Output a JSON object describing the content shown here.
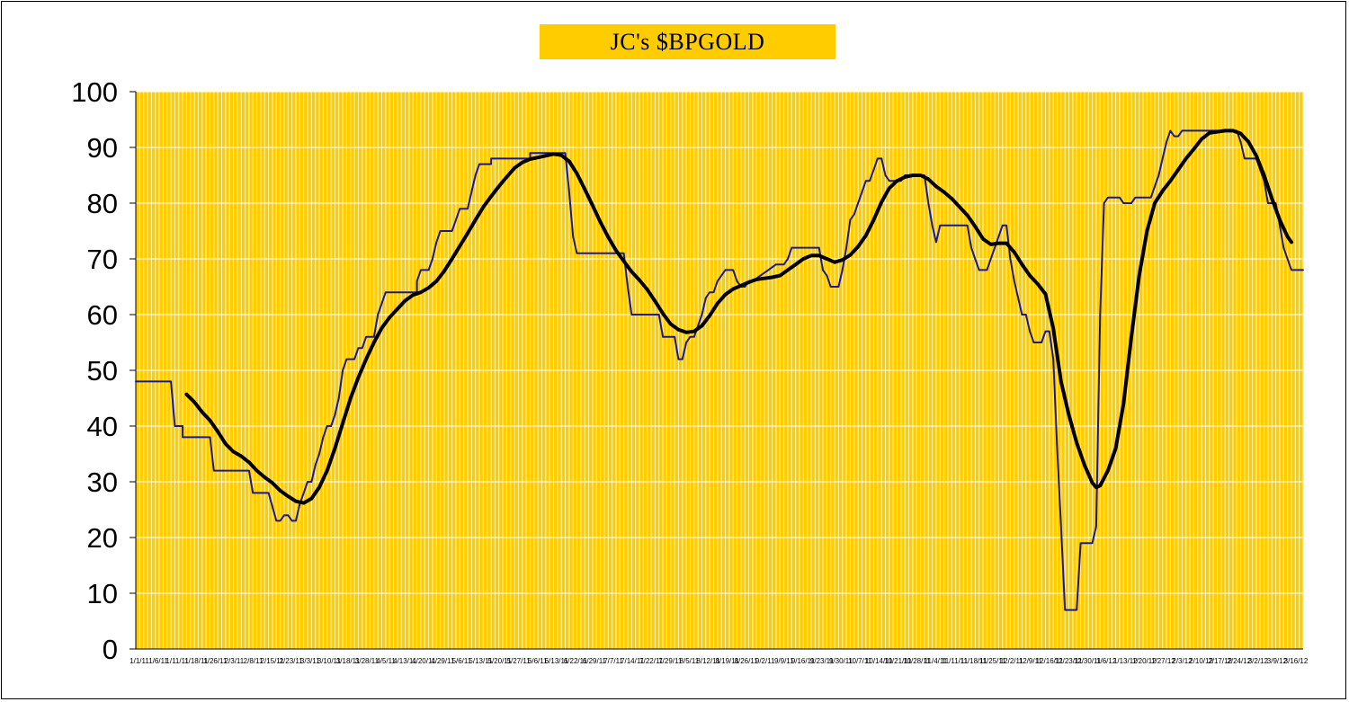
{
  "chart_data": {
    "type": "line",
    "title": "JC's $BPGOLD",
    "xlabel": "",
    "ylabel": "",
    "ylim": [
      0,
      100
    ],
    "yticks": [
      0,
      10,
      20,
      30,
      40,
      50,
      60,
      70,
      80,
      90,
      100
    ],
    "xtick_labels": [
      "1/1/11",
      "1/6/11",
      "1/11/11",
      "1/18/11",
      "1/26/11",
      "2/3/11",
      "2/8/11",
      "2/15/11",
      "2/23/11",
      "3/3/11",
      "3/10/11",
      "3/18/11",
      "3/28/11",
      "4/5/11",
      "4/13/11",
      "4/20/11",
      "4/29/11",
      "5/6/11",
      "5/13/11",
      "5/20/11",
      "5/27/11",
      "6/6/11",
      "6/13/11",
      "6/22/11",
      "6/29/11",
      "7/7/11",
      "7/14/11",
      "7/22/11",
      "7/29/11",
      "8/5/11",
      "8/12/11",
      "8/19/11",
      "8/26/11",
      "9/2/11",
      "9/9/11",
      "9/16/11",
      "9/23/11",
      "9/30/11",
      "10/7/11",
      "10/14/11",
      "10/21/11",
      "10/28/11",
      "11/4/11",
      "11/11/11",
      "11/18/11",
      "11/25/11",
      "12/2/11",
      "12/9/11",
      "12/16/11",
      "12/23/11",
      "12/30/11",
      "1/6/12",
      "1/13/12",
      "1/20/12",
      "1/27/12",
      "2/3/12",
      "2/10/12",
      "2/17/12",
      "2/24/12",
      "3/2/12",
      "3/9/12",
      "3/16/12"
    ],
    "grid": "vertical",
    "background": "#ffcc00",
    "x_count": 300,
    "series": [
      {
        "color": "#1a1a8c",
        "width": 2,
        "points": [
          [
            0,
            48
          ],
          [
            9,
            48
          ],
          [
            10,
            40
          ],
          [
            12,
            40
          ],
          [
            12,
            38
          ],
          [
            19,
            38
          ],
          [
            20,
            32
          ],
          [
            29,
            32
          ],
          [
            30,
            28
          ],
          [
            34,
            28
          ],
          [
            36,
            23
          ],
          [
            37,
            23
          ],
          [
            38,
            24
          ],
          [
            39,
            24
          ],
          [
            40,
            23
          ],
          [
            41,
            23
          ],
          [
            42,
            26
          ],
          [
            43,
            28
          ],
          [
            44,
            30
          ],
          [
            45,
            30
          ],
          [
            46,
            33
          ],
          [
            47,
            35
          ],
          [
            48,
            38
          ],
          [
            49,
            40
          ],
          [
            50,
            40
          ],
          [
            51,
            42
          ],
          [
            52,
            45
          ],
          [
            53,
            50
          ],
          [
            54,
            52
          ],
          [
            56,
            52
          ],
          [
            57,
            54
          ],
          [
            58,
            54
          ],
          [
            59,
            56
          ],
          [
            61,
            56
          ],
          [
            62,
            60
          ],
          [
            63,
            62
          ],
          [
            64,
            64
          ],
          [
            72,
            64
          ],
          [
            72,
            66
          ],
          [
            73,
            68
          ],
          [
            75,
            68
          ],
          [
            76,
            70
          ],
          [
            77,
            73
          ],
          [
            78,
            75
          ],
          [
            81,
            75
          ],
          [
            82,
            77
          ],
          [
            83,
            79
          ],
          [
            85,
            79
          ],
          [
            86,
            82
          ],
          [
            87,
            85
          ],
          [
            88,
            87
          ],
          [
            91,
            87
          ],
          [
            91,
            88
          ],
          [
            101,
            88
          ],
          [
            101,
            89
          ],
          [
            110,
            89
          ],
          [
            111,
            82
          ],
          [
            112,
            74
          ],
          [
            113,
            71
          ],
          [
            125,
            71
          ],
          [
            126,
            65
          ],
          [
            127,
            60
          ],
          [
            134,
            60
          ],
          [
            135,
            56
          ],
          [
            138,
            56
          ],
          [
            139,
            52
          ],
          [
            140,
            52
          ],
          [
            141,
            55
          ],
          [
            142,
            56
          ],
          [
            143,
            56
          ],
          [
            144,
            58
          ],
          [
            145,
            60
          ],
          [
            146,
            63
          ],
          [
            147,
            64
          ],
          [
            148,
            64
          ],
          [
            149,
            66
          ],
          [
            150,
            67
          ],
          [
            151,
            68
          ],
          [
            153,
            68
          ],
          [
            154,
            66
          ],
          [
            155,
            65
          ],
          [
            156,
            65
          ],
          [
            157,
            66
          ],
          [
            158,
            66
          ],
          [
            160,
            67
          ],
          [
            162,
            68
          ],
          [
            164,
            69
          ],
          [
            166,
            69
          ],
          [
            167,
            70
          ],
          [
            168,
            72
          ],
          [
            175,
            72
          ],
          [
            176,
            68
          ],
          [
            177,
            67
          ],
          [
            178,
            65
          ],
          [
            180,
            65
          ],
          [
            181,
            68
          ],
          [
            182,
            72
          ],
          [
            183,
            77
          ],
          [
            184,
            78
          ],
          [
            185,
            80
          ],
          [
            186,
            82
          ],
          [
            187,
            84
          ],
          [
            188,
            84
          ],
          [
            189,
            86
          ],
          [
            190,
            88
          ],
          [
            191,
            88
          ],
          [
            192,
            85
          ],
          [
            193,
            84
          ],
          [
            196,
            84
          ],
          [
            197,
            85
          ],
          [
            202,
            85
          ],
          [
            203,
            80
          ],
          [
            204,
            76
          ],
          [
            205,
            73
          ],
          [
            206,
            76
          ],
          [
            208,
            76
          ],
          [
            213,
            76
          ],
          [
            214,
            72
          ],
          [
            215,
            70
          ],
          [
            216,
            68
          ],
          [
            218,
            68
          ],
          [
            219,
            70
          ],
          [
            220,
            72
          ],
          [
            221,
            74
          ],
          [
            222,
            76
          ],
          [
            223,
            76
          ],
          [
            224,
            70
          ],
          [
            225,
            66
          ],
          [
            226,
            63
          ],
          [
            227,
            60
          ],
          [
            228,
            60
          ],
          [
            229,
            57
          ],
          [
            230,
            55
          ],
          [
            232,
            55
          ],
          [
            233,
            57
          ],
          [
            234,
            57
          ],
          [
            235,
            52
          ],
          [
            236,
            36
          ],
          [
            237,
            22
          ],
          [
            238,
            7
          ],
          [
            241,
            7
          ],
          [
            242,
            19
          ],
          [
            245,
            19
          ],
          [
            246,
            22
          ],
          [
            247,
            60
          ],
          [
            248,
            80
          ],
          [
            249,
            81
          ],
          [
            252,
            81
          ],
          [
            253,
            80
          ],
          [
            255,
            80
          ],
          [
            256,
            81
          ],
          [
            260,
            81
          ],
          [
            261,
            83
          ],
          [
            262,
            85
          ],
          [
            263,
            88
          ],
          [
            264,
            91
          ],
          [
            265,
            93
          ],
          [
            266,
            92
          ],
          [
            267,
            92
          ],
          [
            268,
            93
          ],
          [
            282,
            93
          ],
          [
            283,
            91
          ],
          [
            284,
            88
          ],
          [
            287,
            88
          ],
          [
            288,
            86
          ],
          [
            289,
            84
          ],
          [
            290,
            80
          ],
          [
            291,
            80
          ],
          [
            292,
            80
          ],
          [
            293,
            76
          ],
          [
            294,
            72
          ],
          [
            295,
            70
          ],
          [
            296,
            68
          ],
          [
            299,
            68
          ]
        ]
      },
      {
        "color": "#000000",
        "width": 4,
        "points": [
          [
            13,
            45.7
          ],
          [
            15,
            44.3
          ],
          [
            17,
            42.5
          ],
          [
            19,
            41
          ],
          [
            21,
            39
          ],
          [
            23,
            36.8
          ],
          [
            25,
            35.4
          ],
          [
            27,
            34.6
          ],
          [
            29,
            33.5
          ],
          [
            31,
            32
          ],
          [
            33,
            30.8
          ],
          [
            35,
            29.8
          ],
          [
            37,
            28.4
          ],
          [
            39,
            27.4
          ],
          [
            41,
            26.5
          ],
          [
            43,
            26.2
          ],
          [
            45,
            27
          ],
          [
            47,
            29
          ],
          [
            49,
            32
          ],
          [
            51,
            36
          ],
          [
            53,
            40.5
          ],
          [
            55,
            45
          ],
          [
            57,
            48.7
          ],
          [
            59,
            52
          ],
          [
            61,
            55
          ],
          [
            63,
            57.6
          ],
          [
            65,
            59.5
          ],
          [
            67,
            61
          ],
          [
            69,
            62.5
          ],
          [
            71,
            63.5
          ],
          [
            73,
            64
          ],
          [
            75,
            64.8
          ],
          [
            77,
            66
          ],
          [
            79,
            67.8
          ],
          [
            81,
            70
          ],
          [
            83,
            72.3
          ],
          [
            85,
            74.6
          ],
          [
            87,
            77
          ],
          [
            89,
            79.3
          ],
          [
            91,
            81.2
          ],
          [
            93,
            83
          ],
          [
            95,
            84.7
          ],
          [
            97,
            86.3
          ],
          [
            99,
            87.3
          ],
          [
            101,
            87.9
          ],
          [
            103,
            88.2
          ],
          [
            105,
            88.5
          ],
          [
            107,
            88.8
          ],
          [
            109,
            88.6
          ],
          [
            111,
            87.5
          ],
          [
            113,
            85.3
          ],
          [
            115,
            82.5
          ],
          [
            117,
            79.6
          ],
          [
            119,
            76.6
          ],
          [
            121,
            73.9
          ],
          [
            123,
            71.5
          ],
          [
            125,
            69.6
          ],
          [
            127,
            67.7
          ],
          [
            129,
            66.2
          ],
          [
            131,
            64.5
          ],
          [
            133,
            62.4
          ],
          [
            135,
            60.2
          ],
          [
            137,
            58.3
          ],
          [
            139,
            57.3
          ],
          [
            141,
            56.8
          ],
          [
            143,
            57
          ],
          [
            145,
            58
          ],
          [
            147,
            59.8
          ],
          [
            149,
            62
          ],
          [
            151,
            63.6
          ],
          [
            153,
            64.6
          ],
          [
            155,
            65.2
          ],
          [
            157,
            65.8
          ],
          [
            159,
            66.3
          ],
          [
            161,
            66.5
          ],
          [
            163,
            66.7
          ],
          [
            165,
            67
          ],
          [
            167,
            68
          ],
          [
            169,
            69
          ],
          [
            171,
            70
          ],
          [
            173,
            70.6
          ],
          [
            175,
            70.6
          ],
          [
            177,
            70
          ],
          [
            179,
            69.4
          ],
          [
            181,
            69.8
          ],
          [
            183,
            70.7
          ],
          [
            185,
            72.2
          ],
          [
            187,
            74.2
          ],
          [
            189,
            77
          ],
          [
            191,
            80.2
          ],
          [
            193,
            82.7
          ],
          [
            195,
            84
          ],
          [
            197,
            84.7
          ],
          [
            199,
            85
          ],
          [
            201,
            85
          ],
          [
            203,
            84.3
          ],
          [
            205,
            83
          ],
          [
            207,
            82
          ],
          [
            209,
            80.8
          ],
          [
            211,
            79.3
          ],
          [
            213,
            77.8
          ],
          [
            215,
            75.8
          ],
          [
            217,
            73.6
          ],
          [
            219,
            72.6
          ],
          [
            221,
            72.8
          ],
          [
            223,
            72.8
          ],
          [
            225,
            71.2
          ],
          [
            227,
            69
          ],
          [
            229,
            67
          ],
          [
            231,
            65.5
          ],
          [
            233,
            63.7
          ],
          [
            235,
            57.5
          ],
          [
            237,
            48
          ],
          [
            239,
            42
          ],
          [
            241,
            37
          ],
          [
            243,
            33
          ],
          [
            245,
            29.8
          ],
          [
            246,
            29
          ],
          [
            247,
            29.3
          ],
          [
            249,
            32
          ],
          [
            251,
            36
          ],
          [
            253,
            44
          ],
          [
            255,
            56
          ],
          [
            257,
            67
          ],
          [
            259,
            75
          ],
          [
            261,
            80
          ],
          [
            263,
            82.2
          ],
          [
            265,
            84
          ],
          [
            267,
            86
          ],
          [
            269,
            88
          ],
          [
            271,
            89.7
          ],
          [
            273,
            91.5
          ],
          [
            275,
            92.6
          ],
          [
            277,
            92.8
          ],
          [
            279,
            93
          ],
          [
            281,
            93
          ],
          [
            283,
            92.5
          ],
          [
            285,
            91
          ],
          [
            287,
            88.5
          ],
          [
            289,
            85
          ],
          [
            291,
            80.8
          ],
          [
            293,
            77
          ],
          [
            295,
            74
          ],
          [
            296,
            73
          ]
        ]
      }
    ]
  }
}
